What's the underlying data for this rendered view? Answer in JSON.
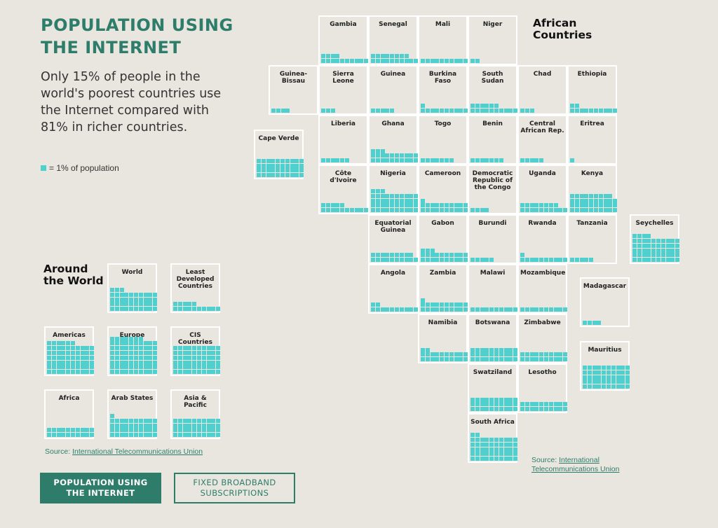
{
  "title": "POPULATION USING THE INTERNET",
  "subtitle": "Only 15% of people in the world's poorest countries use the Internet compared with 81% in richer countries.",
  "legend": "= 1% of population",
  "african_heading": "African\nCountries",
  "world_heading": "Around\nthe World",
  "source_left_prefix": "Source: ",
  "source_left_link": "International Telecommunications Union",
  "source_right_prefix": "Source: ",
  "source_right_link": "International\nTelecommunications Union",
  "buttons": {
    "active": "POPULATION USING\nTHE INTERNET",
    "inactive": "FIXED BROADBAND\nSUBSCRIPTIONS"
  },
  "colors": {
    "accent": "#2e7d6b",
    "square": "#4fd0cf",
    "background": "#e9e6e0",
    "cell_border": "#ffffff"
  },
  "chart_data": [
    {
      "type": "waffle",
      "title": "African Countries",
      "unit": "1 square = 1% of population",
      "entries": [
        {
          "name": "Gambia",
          "value": 14
        },
        {
          "name": "Senegal",
          "value": 18
        },
        {
          "name": "Mali",
          "value": 10
        },
        {
          "name": "Niger",
          "value": 2
        },
        {
          "name": "Guinea-\nBissau",
          "value": 4
        },
        {
          "name": "Sierra Leone",
          "value": 3
        },
        {
          "name": "Guinea",
          "value": 5
        },
        {
          "name": "Burkina Faso",
          "value": 11
        },
        {
          "name": "South Sudan",
          "value": 16
        },
        {
          "name": "Chad",
          "value": 3
        },
        {
          "name": "Ethiopia",
          "value": 12
        },
        {
          "name": "Cape Verde",
          "value": 40
        },
        {
          "name": "Liberia",
          "value": 6
        },
        {
          "name": "Ghana",
          "value": 23
        },
        {
          "name": "Togo",
          "value": 7
        },
        {
          "name": "Benin",
          "value": 7
        },
        {
          "name": "Central\nAfrican Rep.",
          "value": 5
        },
        {
          "name": "Eritrea",
          "value": 1
        },
        {
          "name": "Côte d'Ivoire",
          "value": 15
        },
        {
          "name": "Nigeria",
          "value": 43
        },
        {
          "name": "Cameroon",
          "value": 21
        },
        {
          "name": "Democratic\nRepublic of\nthe Congo",
          "value": 4
        },
        {
          "name": "Uganda",
          "value": 18
        },
        {
          "name": "Kenya",
          "value": 39
        },
        {
          "name": "Equatorial\nGuinea",
          "value": 19
        },
        {
          "name": "Gabon",
          "value": 23
        },
        {
          "name": "Burundi",
          "value": 5
        },
        {
          "name": "Rwanda",
          "value": 11
        },
        {
          "name": "Tanzania",
          "value": 5
        },
        {
          "name": "Seychelles",
          "value": 54
        },
        {
          "name": "Angola",
          "value": 12
        },
        {
          "name": "Zambia",
          "value": 21
        },
        {
          "name": "Malawi",
          "value": 10
        },
        {
          "name": "Mozambique",
          "value": 10
        },
        {
          "name": "Madagascar",
          "value": 4
        },
        {
          "name": "Namibia",
          "value": 22
        },
        {
          "name": "Botswana",
          "value": 30
        },
        {
          "name": "Zimbabwe",
          "value": 20
        },
        {
          "name": "Mauritius",
          "value": 50
        },
        {
          "name": "Swatziland",
          "value": 30
        },
        {
          "name": "Lesotho",
          "value": 20
        },
        {
          "name": "South Africa",
          "value": 52
        }
      ]
    },
    {
      "type": "waffle",
      "title": "Around the World",
      "unit": "1 square = 1% of population",
      "entries": [
        {
          "name": "World",
          "value": 43
        },
        {
          "name": "Least\nDeveloped\nCountries",
          "value": 15
        },
        {
          "name": "Americas",
          "value": 66
        },
        {
          "name": "Europe",
          "value": 77
        },
        {
          "name": "CIS\nCountries",
          "value": 60
        },
        {
          "name": "Africa",
          "value": 20
        },
        {
          "name": "Arab States",
          "value": 41
        },
        {
          "name": "Asia &\nPacific",
          "value": 40
        }
      ]
    }
  ]
}
